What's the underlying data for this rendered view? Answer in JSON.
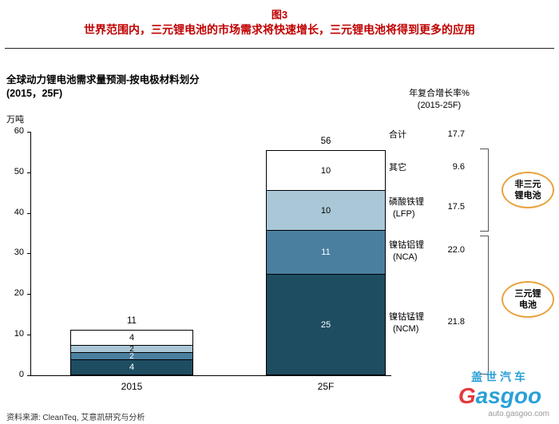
{
  "colors": {
    "title_red": "#c00000",
    "bar_ncm": "#1e4d62",
    "bar_nca": "#4a7fa0",
    "bar_lfp": "#a9c7d6",
    "bar_other": "#ffffff",
    "oval_orange": "#e8a33c",
    "bracket_gray": "#555555",
    "logo_blue": "#2aa0d8",
    "logo_red": "#e4393c"
  },
  "header": {
    "figure_label": "图3",
    "title": "世界范围内，三元锂电池的市场需求将快速增长，三元锂电池将得到更多的应用"
  },
  "chart_header": {
    "title_line1": "全球动力锂电池需求量预测-按电极材料划分",
    "title_line2": "(2015，25F)",
    "unit": "万吨",
    "cagr_line1": "年复合增长率%",
    "cagr_line2": "(2015-25F)"
  },
  "chart_data": {
    "type": "bar",
    "stacked": true,
    "title": "全球动力锂电池需求量预测-按电极材料划分 (2015，25F)",
    "ylabel": "万吨",
    "ylim": [
      0,
      60
    ],
    "yticks": [
      0,
      10,
      20,
      30,
      40,
      50,
      60
    ],
    "categories": [
      "2015",
      "25F"
    ],
    "series": [
      {
        "name": "镍钴锰锂 (NCM)",
        "values": [
          4,
          25
        ],
        "color": "#1e4d62",
        "text_color": "#ffffff",
        "cagr_pct": 21.8
      },
      {
        "name": "镍钴铝锂 (NCA)",
        "values": [
          2,
          11
        ],
        "color": "#4a7fa0",
        "text_color": "#ffffff",
        "cagr_pct": 22.0
      },
      {
        "name": "磷酸铁锂 (LFP)",
        "values": [
          2,
          10
        ],
        "color": "#a9c7d6",
        "text_color": "#000000",
        "cagr_pct": 17.5
      },
      {
        "name": "其它",
        "values": [
          4,
          10
        ],
        "color": "#ffffff",
        "text_color": "#000000",
        "cagr_pct": 9.6
      }
    ],
    "totals": [
      11,
      56
    ],
    "cagr_total": 17.7,
    "legend_position": "right-row-labels",
    "grid": false
  },
  "right_labels": {
    "total": {
      "label": "合计",
      "cagr": "17.7"
    },
    "rows": [
      {
        "line1": "其它",
        "line2": "",
        "cagr": "9.6"
      },
      {
        "line1": "磷酸铁锂",
        "line2": "(LFP)",
        "cagr": "17.5"
      },
      {
        "line1": "镍钴铝锂",
        "line2": "(NCA)",
        "cagr": "22.0"
      },
      {
        "line1": "镍钴锰锂",
        "line2": "(NCM)",
        "cagr": "21.8"
      }
    ]
  },
  "annotations": {
    "non_ternary_line1": "非三元",
    "non_ternary_line2": "锂电池",
    "ternary_line1": "三元锂",
    "ternary_line2": "电池"
  },
  "footer": {
    "source": "资料来源: CleanTeq, 艾意凯研究与分析"
  },
  "logo": {
    "chinese": "盖世汽车",
    "name_first": "G",
    "name_rest": "asgoo",
    "url": "auto.gasgoo.com"
  }
}
